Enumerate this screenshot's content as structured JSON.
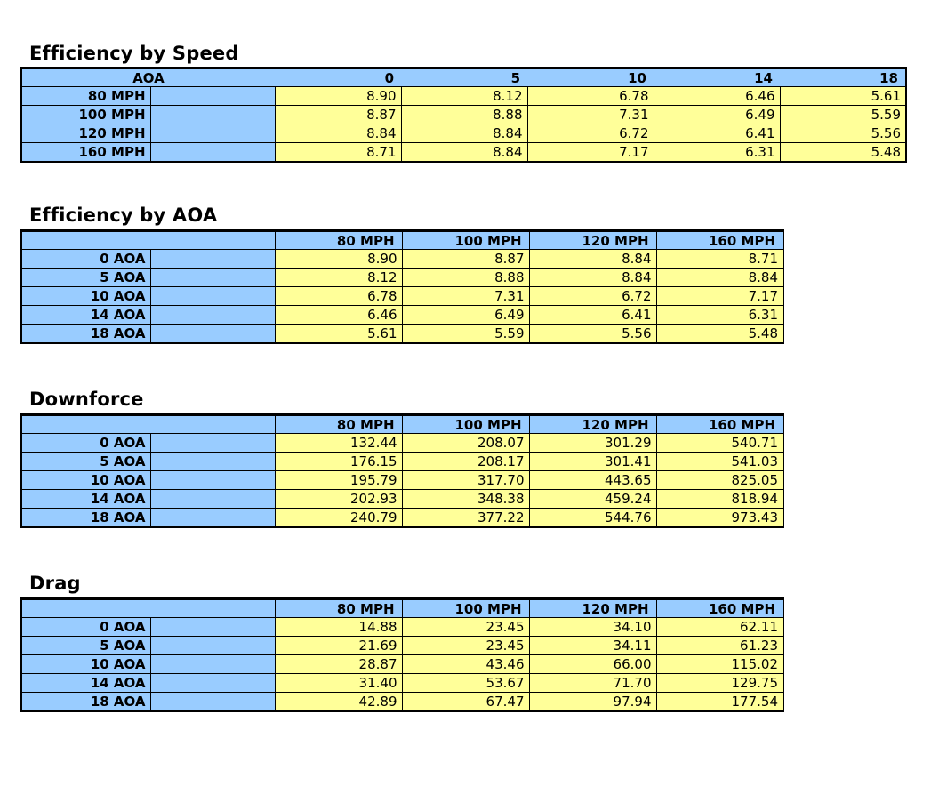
{
  "colors": {
    "header_fill": "#99ccff",
    "value_fill": "#ffff99",
    "border": "#000000",
    "text": "#000000",
    "background": "#ffffff"
  },
  "tables": [
    {
      "title": "Efficiency by Speed",
      "corner_label": "AOA",
      "columns": [
        "0",
        "5",
        "10",
        "14",
        "18"
      ],
      "rows": [
        {
          "label": "80 MPH",
          "values": [
            "8.90",
            "8.12",
            "6.78",
            "6.46",
            "5.61"
          ]
        },
        {
          "label": "100 MPH",
          "values": [
            "8.87",
            "8.88",
            "7.31",
            "6.49",
            "5.59"
          ]
        },
        {
          "label": "120 MPH",
          "values": [
            "8.84",
            "8.84",
            "6.72",
            "6.41",
            "5.56"
          ]
        },
        {
          "label": "160 MPH",
          "values": [
            "8.71",
            "8.84",
            "7.17",
            "6.31",
            "5.48"
          ]
        }
      ]
    },
    {
      "title": "Efficiency by AOA",
      "corner_label": "",
      "columns": [
        "80 MPH",
        "100 MPH",
        "120 MPH",
        "160 MPH"
      ],
      "rows": [
        {
          "label": "0 AOA",
          "values": [
            "8.90",
            "8.87",
            "8.84",
            "8.71"
          ]
        },
        {
          "label": "5 AOA",
          "values": [
            "8.12",
            "8.88",
            "8.84",
            "8.84"
          ]
        },
        {
          "label": "10 AOA",
          "values": [
            "6.78",
            "7.31",
            "6.72",
            "7.17"
          ]
        },
        {
          "label": "14 AOA",
          "values": [
            "6.46",
            "6.49",
            "6.41",
            "6.31"
          ]
        },
        {
          "label": "18 AOA",
          "values": [
            "5.61",
            "5.59",
            "5.56",
            "5.48"
          ]
        }
      ]
    },
    {
      "title": "Downforce",
      "corner_label": "",
      "columns": [
        "80 MPH",
        "100 MPH",
        "120 MPH",
        "160 MPH"
      ],
      "rows": [
        {
          "label": "0 AOA",
          "values": [
            "132.44",
            "208.07",
            "301.29",
            "540.71"
          ]
        },
        {
          "label": "5 AOA",
          "values": [
            "176.15",
            "208.17",
            "301.41",
            "541.03"
          ]
        },
        {
          "label": "10 AOA",
          "values": [
            "195.79",
            "317.70",
            "443.65",
            "825.05"
          ]
        },
        {
          "label": "14 AOA",
          "values": [
            "202.93",
            "348.38",
            "459.24",
            "818.94"
          ]
        },
        {
          "label": "18 AOA",
          "values": [
            "240.79",
            "377.22",
            "544.76",
            "973.43"
          ]
        }
      ]
    },
    {
      "title": "Drag",
      "corner_label": "",
      "columns": [
        "80 MPH",
        "100 MPH",
        "120 MPH",
        "160 MPH"
      ],
      "rows": [
        {
          "label": "0 AOA",
          "values": [
            "14.88",
            "23.45",
            "34.10",
            "62.11"
          ]
        },
        {
          "label": "5 AOA",
          "values": [
            "21.69",
            "23.45",
            "34.11",
            "61.23"
          ]
        },
        {
          "label": "10 AOA",
          "values": [
            "28.87",
            "43.46",
            "66.00",
            "115.02"
          ]
        },
        {
          "label": "14 AOA",
          "values": [
            "31.40",
            "53.67",
            "71.70",
            "129.75"
          ]
        },
        {
          "label": "18 AOA",
          "values": [
            "42.89",
            "67.47",
            "97.94",
            "177.54"
          ]
        }
      ]
    }
  ]
}
